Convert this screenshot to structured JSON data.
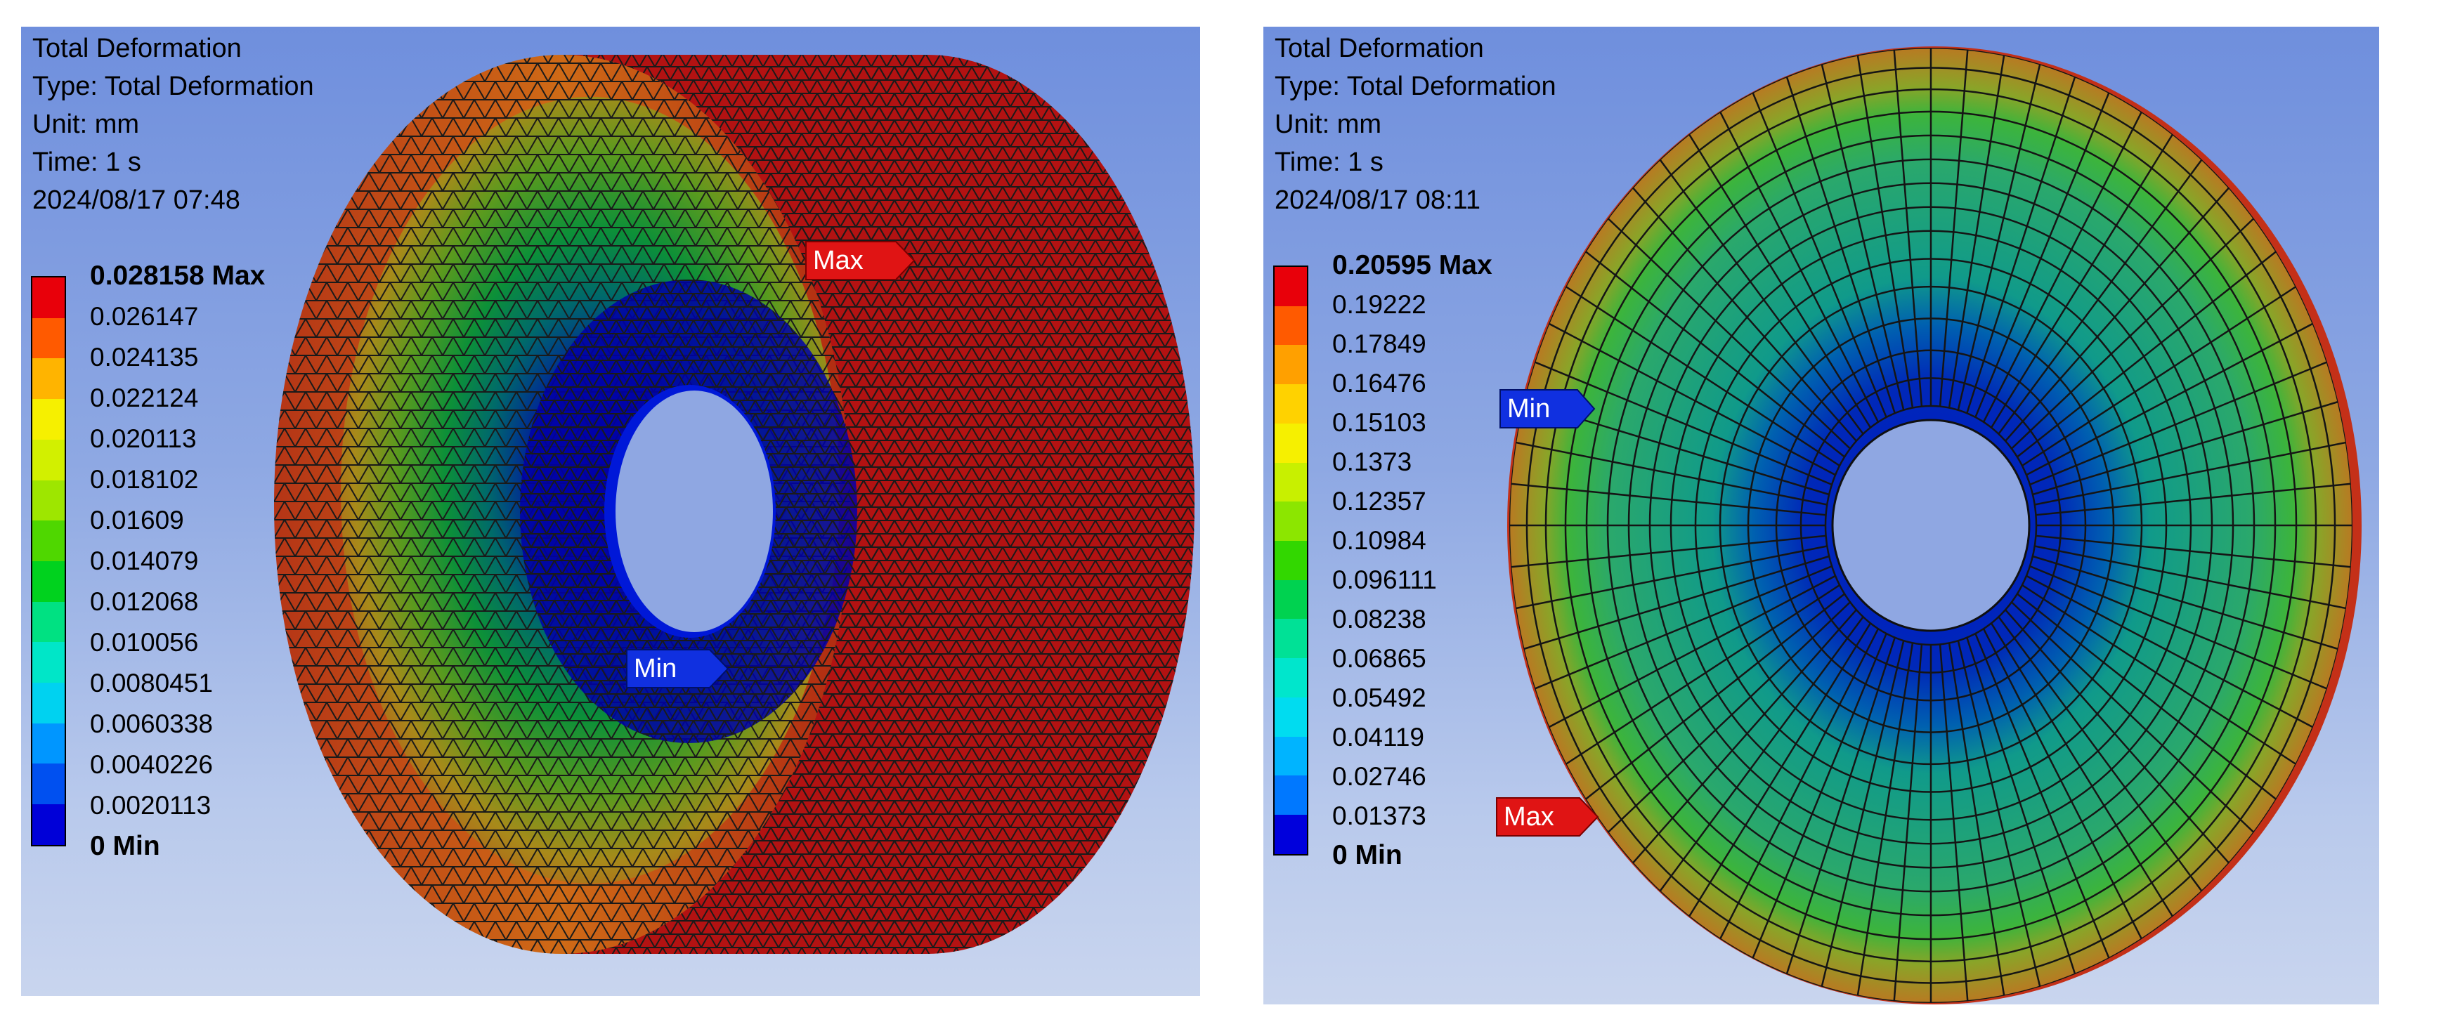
{
  "panels": [
    {
      "info": [
        "Total Deformation",
        "Type: Total Deformation",
        "Unit: mm",
        "Time: 1 s",
        "2024/08/17 07:48"
      ],
      "legend": {
        "labels": [
          "0.028158 Max",
          "0.026147",
          "0.024135",
          "0.022124",
          "0.020113",
          "0.018102",
          "0.01609",
          "0.014079",
          "0.012068",
          "0.010056",
          "0.0080451",
          "0.0060338",
          "0.0040226",
          "0.0020113",
          "0 Min"
        ],
        "colors": [
          "#e8000a",
          "#ff5a00",
          "#ffb400",
          "#f6f000",
          "#d2f000",
          "#9ee600",
          "#4fd700",
          "#00d21e",
          "#00e182",
          "#00e6c8",
          "#00d2f0",
          "#0096ff",
          "#0050f0",
          "#0000d8"
        ]
      },
      "tags": {
        "max": "Max",
        "min": "Min"
      }
    },
    {
      "info": [
        "Total Deformation",
        "Type: Total Deformation",
        "Unit: mm",
        "Time: 1 s",
        "2024/08/17 08:11"
      ],
      "legend": {
        "labels": [
          "0.20595 Max",
          "0.19222",
          "0.17849",
          "0.16476",
          "0.15103",
          "0.1373",
          "0.12357",
          "0.10984",
          "0.096111",
          "0.08238",
          "0.06865",
          "0.05492",
          "0.04119",
          "0.02746",
          "0.01373",
          "0 Min"
        ],
        "colors": [
          "#e8000a",
          "#ff5a00",
          "#ffa000",
          "#ffd200",
          "#f6f000",
          "#c8f000",
          "#8ce600",
          "#32d700",
          "#00d250",
          "#00e196",
          "#00e6cc",
          "#00dcf0",
          "#00b4ff",
          "#0078ff",
          "#0000dc"
        ]
      },
      "tags": {
        "max": "Max",
        "min": "Min"
      }
    }
  ]
}
